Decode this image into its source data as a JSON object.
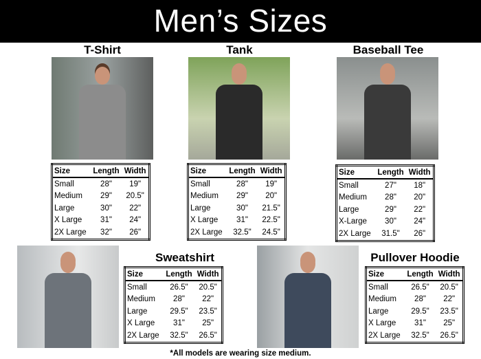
{
  "title": "Men’s Sizes",
  "headers": [
    "Size",
    "Length",
    "Width"
  ],
  "products": [
    {
      "name": "T-Shirt",
      "rows": [
        [
          "Small",
          "28\"",
          "19\""
        ],
        [
          "Medium",
          "29\"",
          "20.5\""
        ],
        [
          "Large",
          "30\"",
          "22\""
        ],
        [
          "X Large",
          "31\"",
          "24\""
        ],
        [
          "2X Large",
          "32\"",
          "26\""
        ]
      ]
    },
    {
      "name": "Tank",
      "rows": [
        [
          "Small",
          "28\"",
          "19\""
        ],
        [
          "Medium",
          "29\"",
          "20\""
        ],
        [
          "Large",
          "30\"",
          "21.5\""
        ],
        [
          "X Large",
          "31\"",
          "22.5\""
        ],
        [
          "2X Large",
          "32.5\"",
          "24.5\""
        ]
      ]
    },
    {
      "name": "Baseball Tee",
      "rows": [
        [
          "Small",
          "27\"",
          "18\""
        ],
        [
          "Medium",
          "28\"",
          "20\""
        ],
        [
          "Large",
          "29\"",
          "22\""
        ],
        [
          "X-Large",
          "30\"",
          "24\""
        ],
        [
          "2X Large",
          "31.5\"",
          "26\""
        ]
      ]
    },
    {
      "name": "Sweatshirt",
      "rows": [
        [
          "Small",
          "26.5\"",
          "20.5\""
        ],
        [
          "Medium",
          "28\"",
          "22\""
        ],
        [
          "Large",
          "29.5\"",
          "23.5\""
        ],
        [
          "X Large",
          "31\"",
          "25\""
        ],
        [
          "2X Large",
          "32.5\"",
          "26.5\""
        ]
      ]
    },
    {
      "name": "Pullover Hoodie",
      "rows": [
        [
          "Small",
          "26.5\"",
          "20.5\""
        ],
        [
          "Medium",
          "28\"",
          "22\""
        ],
        [
          "Large",
          "29.5\"",
          "23.5\""
        ],
        [
          "X Large",
          "31\"",
          "25\""
        ],
        [
          "2X Large",
          "32.5\"",
          "26.5\""
        ]
      ]
    }
  ],
  "footnote": "*All models are wearing size medium."
}
